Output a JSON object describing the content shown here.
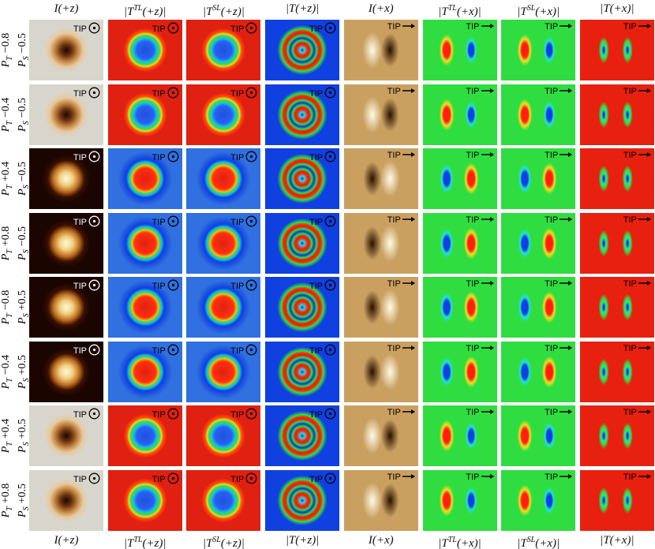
{
  "columns": [
    {
      "prefix": "I(+z)"
    },
    {
      "prefix": "|T",
      "sup": "TL",
      "suffix": "(+z)|"
    },
    {
      "prefix": "|T",
      "sup": "SL",
      "suffix": "(+z)|"
    },
    {
      "prefix": "|T(+z)|"
    },
    {
      "prefix": "I(+x)"
    },
    {
      "prefix": "|T",
      "sup": "TL",
      "suffix": "(+x)|"
    },
    {
      "prefix": "|T",
      "sup": "SL",
      "suffix": "(+x)|"
    },
    {
      "prefix": "|T(+x)|"
    }
  ],
  "tip_label": "TIP",
  "row_symbols": {
    "pt": {
      "symbol": "P",
      "sub": "T"
    },
    "ps": {
      "symbol": "P",
      "sub": "S"
    }
  },
  "rows": [
    {
      "pt": "−0.8",
      "ps": "−0.5"
    },
    {
      "pt": "−0.4",
      "ps": "−0.5"
    },
    {
      "pt": "+0.4",
      "ps": "−0.5"
    },
    {
      "pt": "+0.8",
      "ps": "−0.5"
    },
    {
      "pt": "−0.8",
      "ps": "+0.5"
    },
    {
      "pt": "−0.4",
      "ps": "+0.5"
    },
    {
      "pt": "+0.4",
      "ps": "+0.5"
    },
    {
      "pt": "+0.8",
      "ps": "+0.5"
    }
  ]
}
